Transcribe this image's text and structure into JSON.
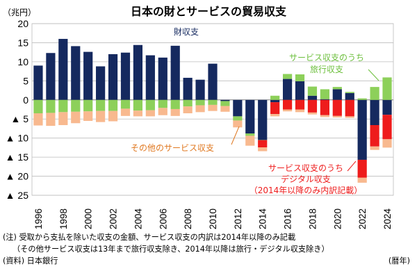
{
  "colors": {
    "goods": "#15295f",
    "travel": "#8dd05a",
    "other": "#f8b98f",
    "digital": "#ee1c1c",
    "goods_label": "#15295f",
    "travel_label": "#6cbf3c",
    "other_label": "#e07820",
    "digital_label": "#ee1c1c"
  },
  "chart_data": {
    "type": "bar",
    "stacked": true,
    "title": "日本の財とサービスの貿易収支",
    "unit_label": "（兆円）",
    "x_unit_label": "（暦年）",
    "ylim": [
      -25,
      20
    ],
    "y_ticks": [
      20,
      15,
      10,
      5,
      0,
      -5,
      -10,
      -15,
      -20,
      -25
    ],
    "y_tick_labels": [
      "20",
      "15",
      "10",
      "5",
      "0",
      "▲ 5",
      "▲ 10",
      "▲ 15",
      "▲ 20",
      "▲ 25"
    ],
    "categories": [
      "1996",
      "1997",
      "1998",
      "1999",
      "2000",
      "2001",
      "2002",
      "2003",
      "2004",
      "2005",
      "2006",
      "2007",
      "2008",
      "2009",
      "2010",
      "2011",
      "2012",
      "2013",
      "2014",
      "2015",
      "2016",
      "2017",
      "2018",
      "2019",
      "2020",
      "2021",
      "2022",
      "2023",
      "2024"
    ],
    "x_tick_labels": [
      "1996",
      "1998",
      "2000",
      "2002",
      "2004",
      "2006",
      "2008",
      "2010",
      "2012",
      "2014",
      "2016",
      "2018",
      "2020",
      "2022",
      "2024"
    ],
    "series": [
      {
        "name": "財収支",
        "key": "goods",
        "values": [
          9.0,
          12.3,
          16.0,
          14.1,
          12.6,
          8.8,
          12.0,
          12.4,
          14.4,
          11.7,
          11.1,
          14.2,
          5.8,
          5.3,
          9.5,
          -0.3,
          -4.3,
          -8.8,
          -10.5,
          -0.6,
          5.5,
          4.9,
          1.1,
          0.2,
          2.8,
          1.8,
          -15.7,
          -6.6,
          -3.9
        ]
      },
      {
        "name": "旅行収支",
        "key": "travel",
        "values": [
          -3.5,
          -3.4,
          -3.2,
          -3.1,
          -3.0,
          -2.9,
          -2.9,
          -2.3,
          -2.8,
          -2.7,
          -2.1,
          -2.4,
          -1.7,
          -1.4,
          -1.3,
          -1.3,
          -1.1,
          -0.6,
          -0.04,
          1.1,
          1.3,
          1.8,
          2.4,
          2.6,
          0.6,
          0.3,
          0.4,
          3.4,
          5.9
        ]
      },
      {
        "name": "デジタル収支",
        "key": "digital",
        "values": [
          0,
          0,
          0,
          0,
          0,
          0,
          0,
          0,
          0,
          0,
          0,
          0,
          0,
          0,
          0,
          0,
          0,
          0,
          -1.9,
          -3.1,
          -2.5,
          -2.5,
          -3.3,
          -4.0,
          -4.2,
          -4.3,
          -4.7,
          -5.6,
          -6.4
        ]
      },
      {
        "name": "その他のサービス収支",
        "key": "other",
        "values": [
          -3.2,
          -3.4,
          -3.4,
          -3.0,
          -2.5,
          -2.9,
          -2.7,
          -1.9,
          -1.5,
          -1.6,
          -1.9,
          -1.8,
          -1.8,
          -1.8,
          -1.6,
          -1.5,
          -1.8,
          -2.6,
          -1.0,
          -0.6,
          -0.5,
          -0.7,
          -0.5,
          -0.5,
          -0.4,
          -0.4,
          -1.3,
          -0.9,
          -2.2
        ]
      }
    ],
    "annotations": [
      {
        "text": "財収支",
        "key": "goods"
      },
      {
        "text": "サービス収支のうち",
        "key": "travel"
      },
      {
        "text": "旅行収支",
        "key": "travel"
      },
      {
        "text": "その他のサービス収支",
        "key": "other"
      },
      {
        "text": "サービス収支のうち",
        "key": "digital"
      },
      {
        "text": "デジタル収支",
        "key": "digital"
      },
      {
        "text": "（2014年以降のみ内訳記載）",
        "key": "digital"
      }
    ]
  },
  "notes": {
    "line1": "(注) 受取から支払を除いた収支の金額、サービス収支の内訳は2014年以降のみ記載",
    "line2": "（その他サービス収支は13年まで旅行収支除き、2014年以降は旅行・デジタル収支除き）",
    "source": "(資料) 日本銀行",
    "x_unit": "(暦年)"
  }
}
